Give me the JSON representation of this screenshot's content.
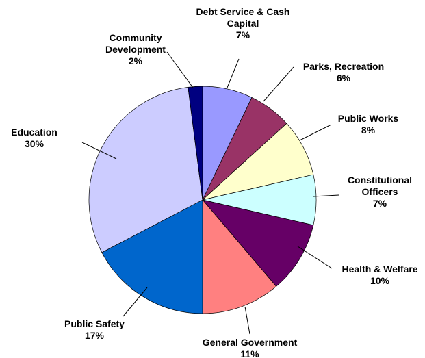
{
  "chart_data": {
    "type": "pie",
    "title": "",
    "start_angle_deg": 0,
    "direction": "clockwise",
    "slices": [
      {
        "label": [
          "Debt Service & Cash",
          "Capital"
        ],
        "percent_label": "7%",
        "value": 7,
        "color": "#9999ff"
      },
      {
        "label": [
          "Parks, Recreation"
        ],
        "percent_label": "6%",
        "value": 6,
        "color": "#993366"
      },
      {
        "label": [
          "Public Works"
        ],
        "percent_label": "8%",
        "value": 8,
        "color": "#ffffcc"
      },
      {
        "label": [
          "Constitutional",
          "Officers"
        ],
        "percent_label": "7%",
        "value": 7,
        "color": "#ccffff"
      },
      {
        "label": [
          "Health & Welfare"
        ],
        "percent_label": "10%",
        "value": 10,
        "color": "#660066"
      },
      {
        "label": [
          "General Government"
        ],
        "percent_label": "11%",
        "value": 11,
        "color": "#ff8080"
      },
      {
        "label": [
          "Public Safety"
        ],
        "percent_label": "17%",
        "value": 17,
        "color": "#0066cc"
      },
      {
        "label": [
          "Education"
        ],
        "percent_label": "30%",
        "value": 30,
        "color": "#ccccff"
      },
      {
        "label": [
          "Community",
          "Development"
        ],
        "percent_label": "2%",
        "value": 2,
        "color": "#000080"
      }
    ]
  }
}
